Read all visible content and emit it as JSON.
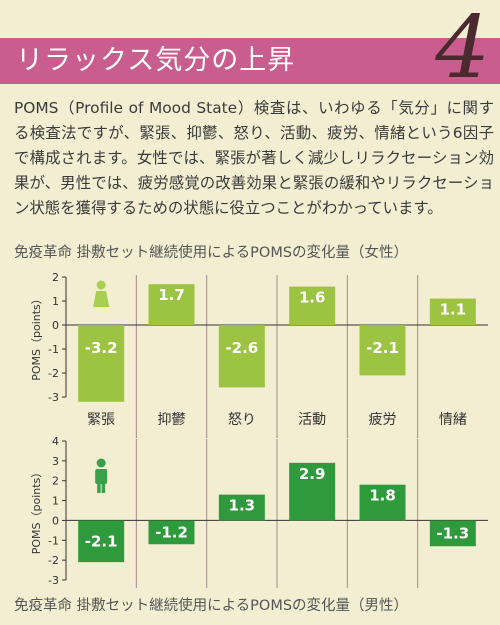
{
  "header": {
    "title": "リラックス気分の上昇",
    "number": "4"
  },
  "intro_text": "POMS（Profile of Mood State）検査は、いわゆる「気分」に関する検査法ですが、緊張、抑鬱、怒り、活動、疲労、情緒という6因子で構成されます。女性では、緊張が著しく減少しリラクセーション効果が、男性では、疲労感覚の改善効果と緊張の緩和やリラクセーション状態を獲得するための状態に役立つことがわかっています。",
  "captions": {
    "female": "免疫革命 掛敷セット継続使用によるPOMSの変化量（女性）",
    "male": "免疫革命 掛敷セット継続使用によるPOMSの変化量（男性）"
  },
  "colors": {
    "header_bg": "#c95d8d",
    "female_bar": "#9cc341",
    "male_bar": "#2f9a3c",
    "female_icon": "#a8cf4f",
    "male_icon": "#3aa14a",
    "background": "#f3eed2",
    "divider": "#a08a8a"
  },
  "chart_data": [
    {
      "type": "bar",
      "group": "女性",
      "categories": [
        "緊張",
        "抑鬱",
        "怒り",
        "活動",
        "疲労",
        "情緒"
      ],
      "values": [
        -3.2,
        1.7,
        -2.6,
        1.6,
        -2.1,
        1.1
      ],
      "value_labels": [
        "-3.2",
        "1.7",
        "-2.6",
        "1.6",
        "-2.1",
        "1.1"
      ],
      "ylabel": "POMS（points）",
      "ylim": [
        -3,
        2
      ],
      "yticks": [
        "2",
        "1",
        "0",
        "-1",
        "-2",
        "-3"
      ],
      "icon": "female-icon"
    },
    {
      "type": "bar",
      "group": "男性",
      "categories": [
        "緊張",
        "抑鬱",
        "怒り",
        "活動",
        "疲労",
        "情緒"
      ],
      "values": [
        -2.1,
        -1.2,
        1.3,
        2.9,
        1.8,
        -1.3
      ],
      "value_labels": [
        "-2.1",
        "-1.2",
        "1.3",
        "2.9",
        "1.8",
        "-1.3"
      ],
      "ylabel": "POMS（points）",
      "ylim": [
        -3,
        4
      ],
      "yticks": [
        "4",
        "3",
        "2",
        "1",
        "0",
        "-1",
        "-2",
        "-3"
      ],
      "icon": "male-icon"
    }
  ]
}
